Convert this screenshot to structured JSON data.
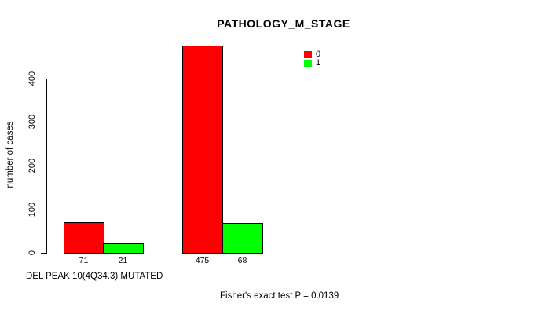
{
  "title": "PATHOLOGY_M_STAGE",
  "chart_data": {
    "type": "bar",
    "title": "PATHOLOGY_M_STAGE",
    "xlabel": "DEL PEAK 10(4Q34.3) MUTATED",
    "ylabel": "number of cases",
    "series": [
      {
        "name": "0",
        "color": "#ff0000",
        "values": [
          71,
          475
        ]
      },
      {
        "name": "1",
        "color": "#00ff00",
        "values": [
          21,
          68
        ]
      }
    ],
    "bar_value_labels": [
      "71",
      "21",
      "475",
      "68"
    ],
    "yticks": [
      0,
      100,
      200,
      300,
      400
    ],
    "ylim": [
      0,
      480
    ],
    "grid": false,
    "legend": {
      "position": "top-right",
      "entries": [
        {
          "label": "0",
          "color": "#ff0000"
        },
        {
          "label": "1",
          "color": "#00ff00"
        }
      ]
    },
    "annotation": "Fisher's exact test P = 0.0139"
  },
  "colors": {
    "series0": "#ff0000",
    "series1": "#00ff00",
    "axis": "#000000",
    "background": "#ffffff"
  }
}
